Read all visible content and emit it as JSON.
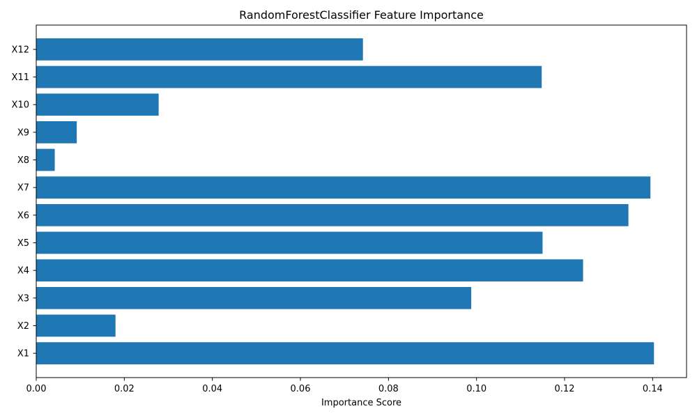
{
  "chart_data": {
    "type": "bar",
    "orientation": "horizontal",
    "title": "RandomForestClassifier Feature Importance",
    "xlabel": "Importance Score",
    "ylabel": "",
    "categories": [
      "X1",
      "X2",
      "X3",
      "X4",
      "X5",
      "X6",
      "X7",
      "X8",
      "X9",
      "X10",
      "X11",
      "X12"
    ],
    "values": [
      0.1403,
      0.018,
      0.0988,
      0.1242,
      0.115,
      0.1345,
      0.1395,
      0.0042,
      0.0092,
      0.0278,
      0.1148,
      0.0742
    ],
    "xlim": [
      0,
      0.1477
    ],
    "xticks": [
      0.0,
      0.02,
      0.04,
      0.06,
      0.08,
      0.1,
      0.12,
      0.14
    ],
    "xtick_labels": [
      "0.00",
      "0.02",
      "0.04",
      "0.06",
      "0.08",
      "0.10",
      "0.12",
      "0.14"
    ],
    "bar_color": "#1f77b4",
    "grid": false,
    "legend": "none"
  }
}
